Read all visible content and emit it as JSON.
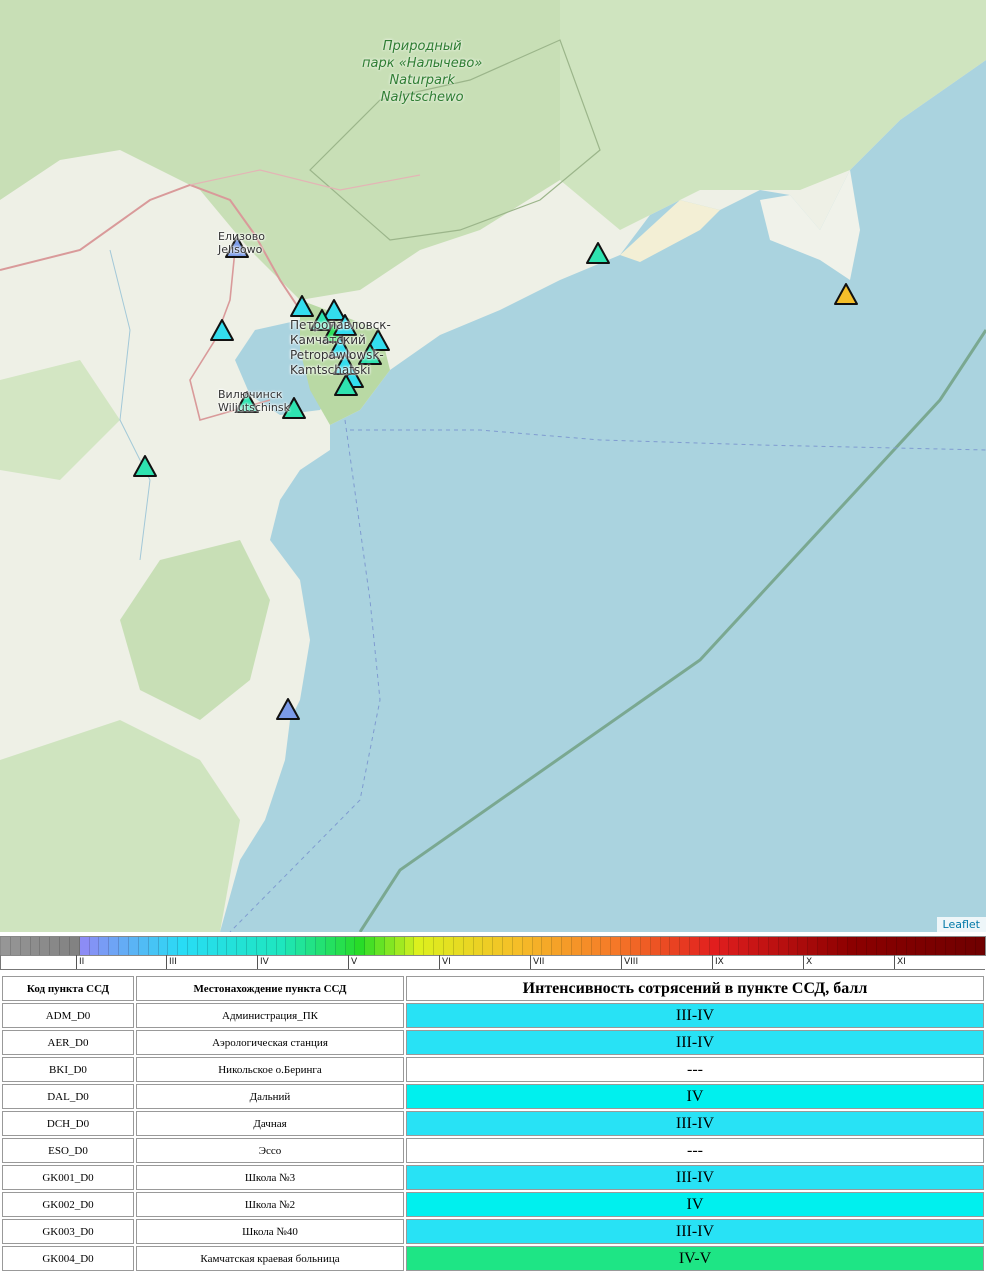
{
  "map": {
    "labels": {
      "park": [
        "Природный",
        "парк «Налычево»",
        "Naturpark",
        "Nalytschewo"
      ],
      "yelizovo": [
        "Елизово",
        "Jelisowo"
      ],
      "petropavlovsk": [
        "Петропавловск-",
        "Камчатский",
        "Petropawlowsk-",
        "Kamtschatski"
      ],
      "vilyuchinsk": [
        "Вилючинск",
        "Wiljutschinsk"
      ]
    },
    "attribution": "Leaflet",
    "marker_colors": {
      "blue": "#7b9be8",
      "cyan": "#33ddee",
      "teal": "#2ee3b0",
      "green": "#2ee05a",
      "yellow": "#f4be2a"
    }
  },
  "intensity_scale": {
    "tick_labels": [
      "II",
      "III",
      "IV",
      "V",
      "VI",
      "VII",
      "VIII",
      "IX",
      "X",
      "XI"
    ]
  },
  "table": {
    "headers": {
      "code": "Код пункта ССД",
      "location": "Местонахождение пункта ССД",
      "intensity": "Интенсивность сотрясений в пункте ССД, балл"
    },
    "rows": [
      {
        "code": "ADM_D0",
        "location": "Администрация_ПК",
        "intensity": "III-IV",
        "color": "#28e2f5"
      },
      {
        "code": "AER_D0",
        "location": "Аэрологическая станция",
        "intensity": "III-IV",
        "color": "#28e2f5"
      },
      {
        "code": "BKI_D0",
        "location": "Никольское о.Беринга",
        "intensity": "---",
        "color": "#ffffff"
      },
      {
        "code": "DAL_D0",
        "location": "Дальний",
        "intensity": "IV",
        "color": "#00f0ee"
      },
      {
        "code": "DCH_D0",
        "location": "Дачная",
        "intensity": "III-IV",
        "color": "#28e2f5"
      },
      {
        "code": "ESO_D0",
        "location": "Эссо",
        "intensity": "---",
        "color": "#ffffff"
      },
      {
        "code": "GK001_D0",
        "location": "Школа №3",
        "intensity": "III-IV",
        "color": "#28e2f5"
      },
      {
        "code": "GK002_D0",
        "location": "Школа №2",
        "intensity": "IV",
        "color": "#00f0ee"
      },
      {
        "code": "GK003_D0",
        "location": "Школа №40",
        "intensity": "III-IV",
        "color": "#28e2f5"
      },
      {
        "code": "GK004_D0",
        "location": "Камчатская краевая больница",
        "intensity": "IV-V",
        "color": "#1ee585"
      }
    ]
  }
}
